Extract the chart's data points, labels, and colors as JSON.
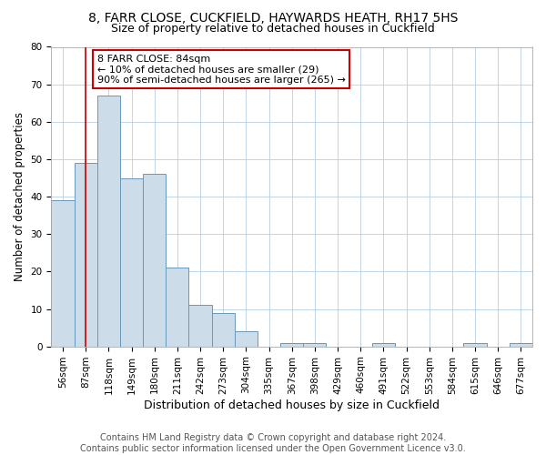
{
  "title": "8, FARR CLOSE, CUCKFIELD, HAYWARDS HEATH, RH17 5HS",
  "subtitle": "Size of property relative to detached houses in Cuckfield",
  "xlabel": "Distribution of detached houses by size in Cuckfield",
  "ylabel": "Number of detached properties",
  "bins": [
    "56sqm",
    "87sqm",
    "118sqm",
    "149sqm",
    "180sqm",
    "211sqm",
    "242sqm",
    "273sqm",
    "304sqm",
    "335sqm",
    "367sqm",
    "398sqm",
    "429sqm",
    "460sqm",
    "491sqm",
    "522sqm",
    "553sqm",
    "584sqm",
    "615sqm",
    "646sqm",
    "677sqm"
  ],
  "counts": [
    39,
    49,
    67,
    45,
    46,
    21,
    11,
    9,
    4,
    0,
    1,
    1,
    0,
    0,
    1,
    0,
    0,
    0,
    1,
    0,
    1
  ],
  "bar_color": "#ccdce8",
  "bar_edge_color": "#6699bb",
  "property_line_color": "#cc0000",
  "annotation_text": "8 FARR CLOSE: 84sqm\n← 10% of detached houses are smaller (29)\n90% of semi-detached houses are larger (265) →",
  "annotation_box_color": "#ffffff",
  "annotation_box_edge_color": "#cc0000",
  "footer": "Contains HM Land Registry data © Crown copyright and database right 2024.\nContains public sector information licensed under the Open Government Licence v3.0.",
  "ylim": [
    0,
    80
  ],
  "yticks": [
    0,
    10,
    20,
    30,
    40,
    50,
    60,
    70,
    80
  ],
  "title_fontsize": 10,
  "subtitle_fontsize": 9,
  "xlabel_fontsize": 9,
  "ylabel_fontsize": 8.5,
  "tick_fontsize": 7.5,
  "footer_fontsize": 7,
  "annot_fontsize": 8
}
